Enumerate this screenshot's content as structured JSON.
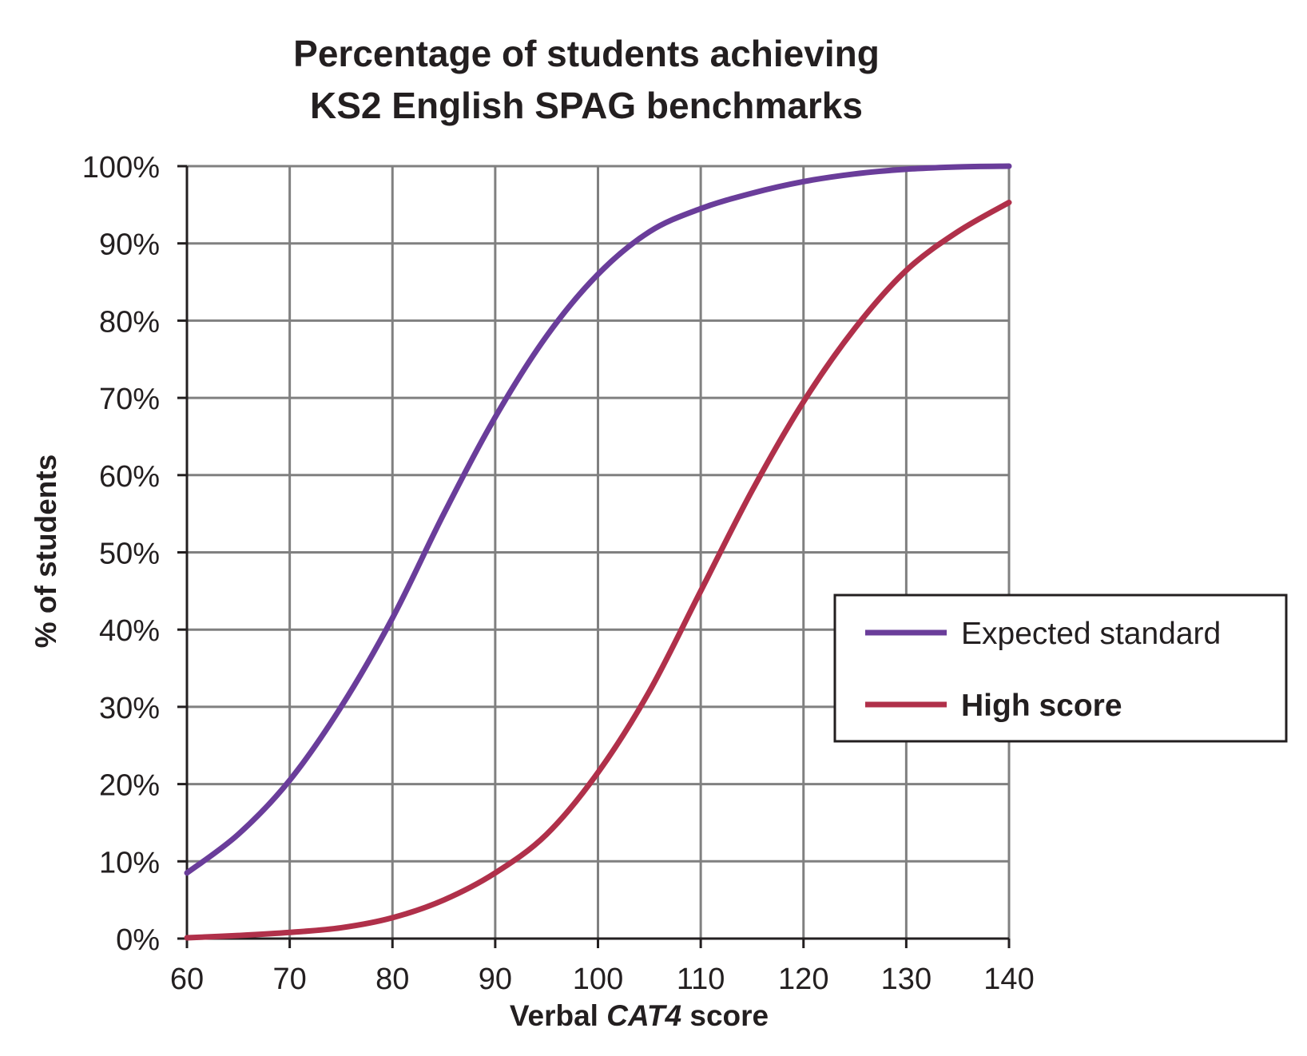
{
  "chart_data": {
    "type": "line",
    "title_line1": "Percentage of students achieving",
    "title_line2": "KS2 English SPAG benchmarks",
    "xlabel_pre": "Verbal ",
    "xlabel_italic": "CAT4",
    "xlabel_post": " score",
    "ylabel": "% of students",
    "xlim": [
      60,
      140
    ],
    "ylim": [
      0,
      100
    ],
    "x_ticks": [
      "60",
      "70",
      "80",
      "90",
      "100",
      "110",
      "120",
      "130",
      "140"
    ],
    "y_ticks": [
      "0%",
      "10%",
      "20%",
      "30%",
      "40%",
      "50%",
      "60%",
      "70%",
      "80%",
      "90%",
      "100%"
    ],
    "grid": true,
    "legend_position": "right",
    "series": [
      {
        "name": "Expected standard",
        "color": "#6a3d9a",
        "bold_label": false,
        "x": [
          60,
          65,
          70,
          75,
          80,
          85,
          90,
          95,
          100,
          105,
          110,
          115,
          120,
          125,
          130,
          135,
          140
        ],
        "y": [
          8.5,
          13.5,
          20.5,
          30,
          41.5,
          55,
          67.5,
          78,
          86,
          91.5,
          94.5,
          96.5,
          98,
          99,
          99.6,
          99.9,
          100
        ]
      },
      {
        "name": "High score",
        "color": "#b0304a",
        "bold_label": true,
        "x": [
          60,
          65,
          70,
          75,
          80,
          85,
          90,
          95,
          100,
          105,
          110,
          115,
          120,
          125,
          130,
          135,
          140
        ],
        "y": [
          0.1,
          0.4,
          0.8,
          1.4,
          2.7,
          5,
          8.5,
          13.5,
          21.5,
          32,
          45,
          58,
          69.5,
          79,
          86.5,
          91.5,
          95.3
        ]
      }
    ]
  }
}
